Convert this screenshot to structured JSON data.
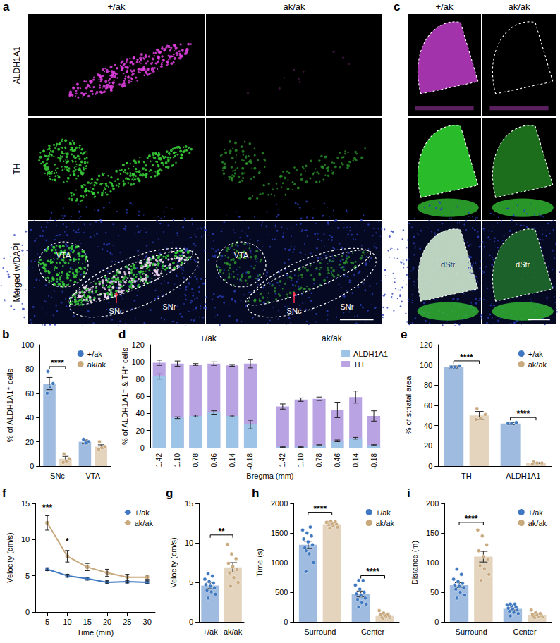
{
  "images": [
    {
      "panel": "a",
      "columns": [
        "+/ak",
        "ak/ak"
      ],
      "rows": [
        "ALDH1A1",
        "TH",
        "Merged w/DAPI"
      ],
      "region_labels": [
        "VTA",
        "SNc",
        "SNr"
      ]
    },
    {
      "panel": "c",
      "columns": [
        "+/ak",
        "ak/ak"
      ],
      "region_labels": [
        "dStr"
      ]
    }
  ],
  "chart_data": [
    {
      "panel": "b",
      "type": "bar",
      "categories": [
        "SNc",
        "VTA"
      ],
      "ylabel": "% of ALDH1A1⁺ cells",
      "ylim": [
        0,
        100
      ],
      "yticks": [
        0,
        20,
        40,
        60,
        80,
        100
      ],
      "grid": false,
      "legend": "top-right",
      "series": [
        {
          "name": "+/ak",
          "color": "#3f78c0",
          "values": [
            68,
            20
          ],
          "errors": [
            5,
            1.5
          ],
          "points": [
            [
              78,
              68,
              65,
              60
            ],
            [
              22,
              20,
              19
            ]
          ]
        },
        {
          "name": "ak/ak",
          "color": "#c9a97e",
          "values": [
            6,
            16
          ],
          "errors": [
            2,
            1.5
          ],
          "points": [
            [
              10,
              6,
              4,
              3
            ],
            [
              20,
              16,
              15,
              14
            ]
          ]
        }
      ],
      "annotations": [
        {
          "text": "****",
          "x": "SNc",
          "y": 82
        }
      ]
    },
    {
      "panel": "d",
      "type": "bar",
      "ylabel": "% of ALDH1A1⁺ & TH⁺ cells",
      "xlabel": "Bregma (mm)",
      "ylim": [
        0,
        120
      ],
      "yticks": [
        0,
        20,
        40,
        60,
        80,
        100,
        120
      ],
      "grid": false,
      "legend": "top-right",
      "groups": [
        {
          "name": "+/ak",
          "categories": [
            "1.42",
            "1.10",
            "0.78",
            "0.46",
            "0.14",
            "-0.18"
          ],
          "series": [
            {
              "name": "ALDH1A1",
              "color": "#9dc3e6",
              "values": [
                83,
                35,
                37,
                41,
                37,
                27
              ],
              "errors": [
                3,
                1,
                1,
                2,
                1,
                5
              ]
            },
            {
              "name": "TH",
              "color": "#b9a3e3",
              "values": [
                99,
                98,
                97,
                98,
                96,
                98
              ],
              "errors": [
                3,
                3,
                1,
                2,
                1,
                5
              ]
            }
          ]
        },
        {
          "name": "ak/ak",
          "categories": [
            "1.42",
            "1.10",
            "0.78",
            "0.46",
            "0.14",
            "-0.18"
          ],
          "series": [
            {
              "name": "ALDH1A1",
              "color": "#9dc3e6",
              "values": [
                1,
                1,
                3,
                8,
                11,
                3
              ],
              "errors": [
                0.5,
                0.5,
                0.5,
                1,
                1,
                0.5
              ]
            },
            {
              "name": "TH",
              "color": "#b9a3e3",
              "values": [
                48,
                56,
                57,
                44,
                59,
                37
              ],
              "errors": [
                3,
                2,
                2,
                9,
                7,
                6
              ]
            }
          ]
        }
      ]
    },
    {
      "panel": "e",
      "type": "bar",
      "categories": [
        "TH",
        "ALDH1A1"
      ],
      "ylabel": "% of striatal area",
      "ylim": [
        0,
        120
      ],
      "yticks": [
        0,
        20,
        40,
        60,
        80,
        100,
        120
      ],
      "grid": false,
      "legend": "top-right",
      "series": [
        {
          "name": "+/ak",
          "color": "#3f78c0",
          "values": [
            98,
            42
          ],
          "errors": [
            1,
            1
          ],
          "points": [
            [
              98,
              99,
              98
            ],
            [
              42,
              43,
              42
            ]
          ]
        },
        {
          "name": "ak/ak",
          "color": "#c9a97e",
          "values": [
            50,
            3
          ],
          "errors": [
            4,
            0.5
          ],
          "points": [
            [
              57,
              51,
              47,
              46
            ],
            [
              4,
              3,
              3,
              2
            ]
          ]
        }
      ],
      "annotations": [
        {
          "text": "****",
          "x": "TH",
          "y": 104
        },
        {
          "text": "****",
          "x": "ALDH1A1",
          "y": 48
        }
      ]
    },
    {
      "panel": "f",
      "type": "line",
      "x": [
        5,
        10,
        15,
        20,
        25,
        30
      ],
      "xlim": [
        2,
        32
      ],
      "xticks": [
        5,
        10,
        15,
        20,
        25,
        30
      ],
      "xlabel": "Time (min)",
      "ylabel": "Velocity (cm/s)",
      "ylim": [
        0,
        15
      ],
      "yticks": [
        0,
        5,
        10,
        15
      ],
      "grid": false,
      "legend": "top-right",
      "marker": "circle",
      "series": [
        {
          "name": "+/ak",
          "color": "#3f78c0",
          "values": [
            5.9,
            5.0,
            4.6,
            4.1,
            4.2,
            4.1
          ],
          "errors": [
            0.2,
            0.2,
            0.2,
            0.2,
            0.2,
            0.2
          ]
        },
        {
          "name": "ak/ak",
          "color": "#c9a97e",
          "values": [
            12.3,
            7.7,
            6.2,
            5.4,
            4.8,
            4.8
          ],
          "errors": [
            1.0,
            0.8,
            0.5,
            0.5,
            0.4,
            0.3
          ]
        }
      ],
      "annotations": [
        {
          "text": "***",
          "x": 5,
          "y": 13.8
        },
        {
          "text": "*",
          "x": 10,
          "y": 9.2
        }
      ]
    },
    {
      "panel": "g",
      "type": "bar",
      "categories": [
        "+/ak",
        "ak/ak"
      ],
      "ylabel": "Velocity (cm/s)",
      "ylim": [
        0,
        15
      ],
      "yticks": [
        0,
        5,
        10,
        15
      ],
      "grid": false,
      "series": [
        {
          "colors": [
            "#3f78c0",
            "#c9a97e"
          ],
          "values": [
            4.6,
            6.9
          ],
          "errors": [
            0.4,
            0.6
          ],
          "points": [
            [
              3.0,
              3.5,
              3.8,
              4.0,
              4.3,
              4.5,
              4.7,
              4.9,
              5.1,
              5.4,
              5.8,
              6.1
            ],
            [
              4.5,
              5.0,
              5.6,
              6.2,
              6.6,
              7.0,
              7.4,
              8.0,
              8.6,
              9.8
            ]
          ]
        }
      ],
      "annotations": [
        {
          "text": "**",
          "x": [
            "+/ak",
            "ak/ak"
          ],
          "y": 11
        }
      ]
    },
    {
      "panel": "h",
      "type": "bar",
      "categories": [
        "Surround",
        "Center"
      ],
      "ylabel": "Time (s)",
      "ylim": [
        0,
        2000
      ],
      "yticks": [
        0,
        500,
        1000,
        1500,
        2000
      ],
      "grid": false,
      "legend": "top-right",
      "series": [
        {
          "name": "+/ak",
          "color": "#3f78c0",
          "values": [
            1300,
            470
          ],
          "errors": [
            60,
            50
          ],
          "points": [
            [
              850,
              1000,
              1150,
              1250,
              1300,
              1350,
              1400,
              1450,
              1500,
              1550,
              1600,
              1200
            ],
            [
              250,
              300,
              330,
              380,
              400,
              450,
              470,
              500,
              550,
              620,
              700,
              700
            ]
          ]
        },
        {
          "name": "ak/ak",
          "color": "#c9a97e",
          "values": [
            1650,
            110
          ],
          "errors": [
            15,
            12
          ],
          "points": [
            [
              1580,
              1600,
              1620,
              1640,
              1650,
              1660,
              1680,
              1690,
              1700,
              1680
            ],
            [
              60,
              70,
              80,
              90,
              100,
              110,
              120,
              130,
              150,
              190
            ]
          ]
        }
      ],
      "annotations": [
        {
          "text": "****",
          "x": "Surround",
          "y": 1850
        },
        {
          "text": "****",
          "x": "Center",
          "y": 780
        }
      ]
    },
    {
      "panel": "i",
      "type": "bar",
      "categories": [
        "Surround",
        "Center"
      ],
      "ylabel": "Distance (m)",
      "ylim": [
        0,
        200
      ],
      "yticks": [
        0,
        50,
        100,
        150,
        200
      ],
      "grid": false,
      "legend": "top-right",
      "series": [
        {
          "name": "+/ak",
          "color": "#3f78c0",
          "values": [
            62,
            22
          ],
          "errors": [
            4,
            2
          ],
          "points": [
            [
              40,
              45,
              50,
              55,
              58,
              60,
              62,
              65,
              68,
              72,
              80,
              89
            ],
            [
              10,
              14,
              16,
              18,
              20,
              22,
              23,
              25,
              27,
              29,
              30,
              30
            ]
          ]
        },
        {
          "name": "ak/ak",
          "color": "#c9a97e",
          "values": [
            110,
            12
          ],
          "errors": [
            9,
            1.3
          ],
          "points": [
            [
              70,
              80,
              90,
              95,
              105,
              110,
              120,
              130,
              145,
              155
            ],
            [
              7,
              8,
              9,
              10,
              11,
              12,
              13,
              14,
              16,
              20
            ]
          ]
        }
      ],
      "annotations": [
        {
          "text": "****",
          "x": "Surround",
          "y": 168
        }
      ]
    }
  ]
}
